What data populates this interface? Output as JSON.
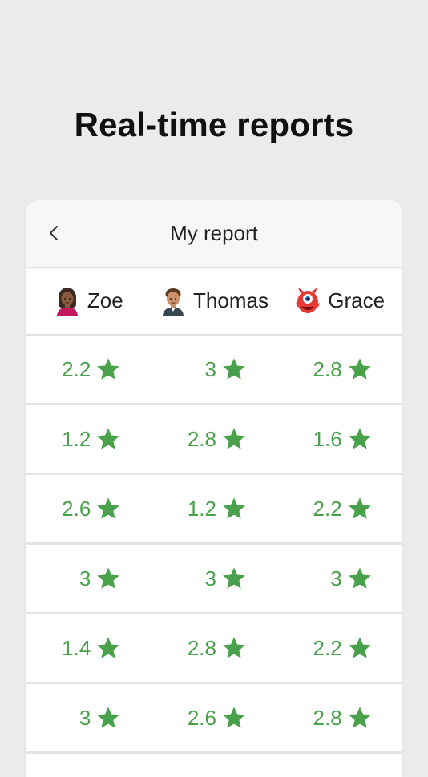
{
  "headline": "Real-time reports",
  "report": {
    "title": "My report",
    "back_label": "Back"
  },
  "columns": [
    {
      "name": "Zoe",
      "avatar_icon": "girl-avatar-icon"
    },
    {
      "name": "Thomas",
      "avatar_icon": "boy-avatar-icon"
    },
    {
      "name": "Grace",
      "avatar_icon": "red-monster-avatar-icon"
    }
  ],
  "rows": [
    [
      "2.2",
      "3",
      "2.8"
    ],
    [
      "1.2",
      "2.8",
      "1.6"
    ],
    [
      "2.6",
      "1.2",
      "2.2"
    ],
    [
      "3",
      "3",
      "3"
    ],
    [
      "1.4",
      "2.8",
      "2.2"
    ],
    [
      "3",
      "2.6",
      "2.8"
    ]
  ],
  "colors": {
    "accent": "#4aa14c",
    "background": "#ebebeb",
    "card": "#ffffff",
    "header": "#f7f7f7"
  }
}
